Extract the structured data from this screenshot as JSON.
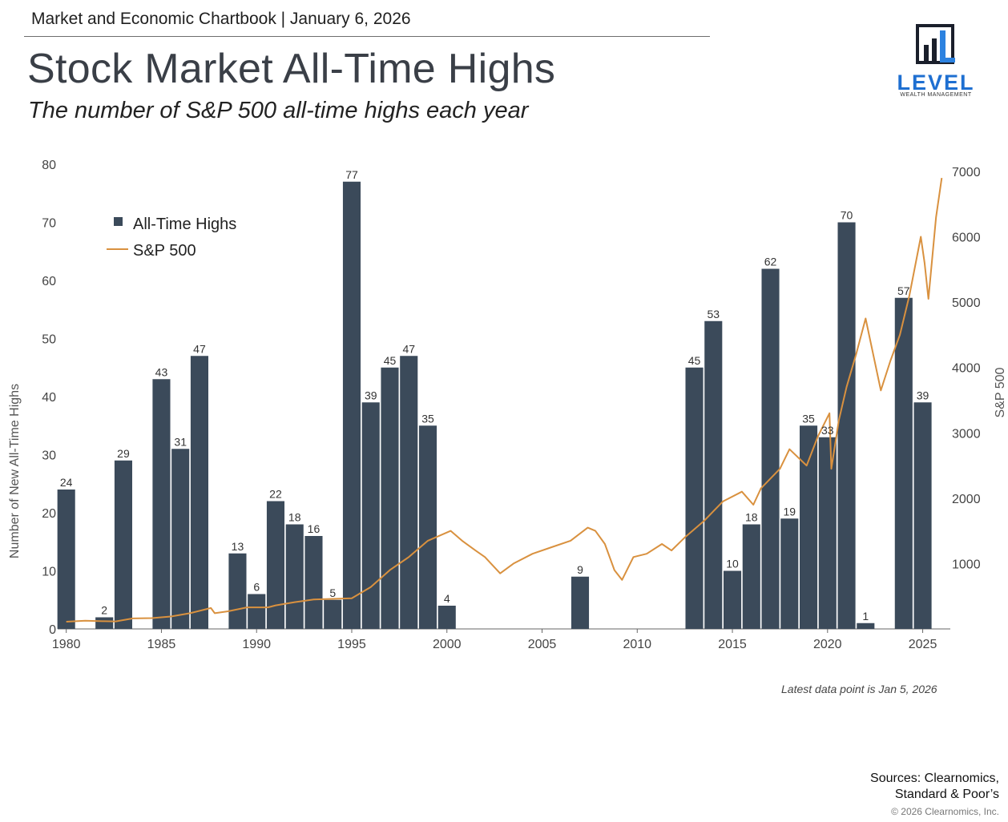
{
  "header": {
    "text": "Market and Economic Chartbook | January 6, 2026"
  },
  "title": "Stock Market All-Time Highs",
  "subtitle": "The number of S&P 500 all-time highs each year",
  "logo": {
    "word": "LEVEL",
    "sub": "WEALTH MANAGEMENT",
    "icon": "bar-chart-icon"
  },
  "note": "Latest data point is Jan 5, 2026",
  "sources": {
    "line1": "Sources: Clearnomics,",
    "line2": "Standard & Poor’s"
  },
  "copyright": "© 2026 Clearnomics, Inc.",
  "colors": {
    "bar": "#3b4a5a",
    "line": "#d9913f",
    "axis": "#666666",
    "label": "#333333"
  },
  "chart_data": {
    "type": "bar",
    "title": "Stock Market All-Time Highs",
    "xlabel": "",
    "ylabel": "Number of New All-Time Highs",
    "y2label": "S&P 500",
    "ylim": [
      0,
      80
    ],
    "y2lim": [
      0,
      7000
    ],
    "yticks": [
      0,
      10,
      20,
      30,
      40,
      50,
      60,
      70,
      80
    ],
    "y2ticks": [
      1000,
      2000,
      3000,
      4000,
      5000,
      6000,
      7000
    ],
    "xticks": [
      1980,
      1985,
      1990,
      1995,
      2000,
      2005,
      2010,
      2015,
      2020,
      2025
    ],
    "legend": {
      "placement": "top-left",
      "bar_label": "All-Time Highs",
      "line_label": "S&P 500"
    },
    "bars": {
      "name": "All-Time Highs",
      "x": [
        1980,
        1982,
        1983,
        1985,
        1986,
        1987,
        1989,
        1990,
        1991,
        1992,
        1993,
        1994,
        1995,
        1996,
        1997,
        1998,
        1999,
        2000,
        2007,
        2013,
        2014,
        2015,
        2016,
        2017,
        2018,
        2019,
        2020,
        2021,
        2022,
        2024,
        2025
      ],
      "values": [
        24,
        2,
        29,
        43,
        31,
        47,
        13,
        6,
        22,
        18,
        16,
        5,
        77,
        39,
        45,
        47,
        35,
        4,
        9,
        45,
        53,
        10,
        18,
        62,
        19,
        35,
        33,
        70,
        1,
        57,
        39
      ]
    },
    "line": {
      "name": "S&P 500",
      "x": [
        1980.0,
        1981.0,
        1982.0,
        1982.6,
        1983.5,
        1984.5,
        1985.5,
        1986.5,
        1987.6,
        1987.8,
        1988.5,
        1989.5,
        1990.6,
        1991.0,
        1992.0,
        1993.0,
        1994.0,
        1995.0,
        1996.0,
        1997.0,
        1998.0,
        1999.0,
        2000.2,
        2000.8,
        2001.5,
        2002.0,
        2002.8,
        2003.5,
        2004.5,
        2005.5,
        2006.5,
        2007.4,
        2007.8,
        2008.3,
        2008.8,
        2009.2,
        2009.8,
        2010.5,
        2011.3,
        2011.8,
        2012.5,
        2013.5,
        2014.5,
        2015.5,
        2016.1,
        2016.5,
        2017.5,
        2018.0,
        2018.9,
        2019.5,
        2020.1,
        2020.2,
        2020.6,
        2021.0,
        2021.5,
        2022.0,
        2022.4,
        2022.8,
        2023.3,
        2023.8,
        2024.3,
        2024.9,
        2025.1,
        2025.3,
        2025.7,
        2026.0
      ],
      "values": [
        110,
        125,
        118,
        115,
        160,
        165,
        190,
        240,
        320,
        240,
        270,
        330,
        330,
        360,
        410,
        450,
        460,
        470,
        640,
        900,
        1100,
        1350,
        1500,
        1350,
        1200,
        1100,
        850,
        1000,
        1150,
        1250,
        1350,
        1550,
        1500,
        1300,
        900,
        750,
        1100,
        1150,
        1300,
        1200,
        1400,
        1650,
        1950,
        2100,
        1900,
        2150,
        2450,
        2750,
        2500,
        2950,
        3300,
        2450,
        3200,
        3700,
        4200,
        4750,
        4200,
        3650,
        4100,
        4500,
        5100,
        6000,
        5600,
        5050,
        6300,
        6900
      ]
    }
  }
}
